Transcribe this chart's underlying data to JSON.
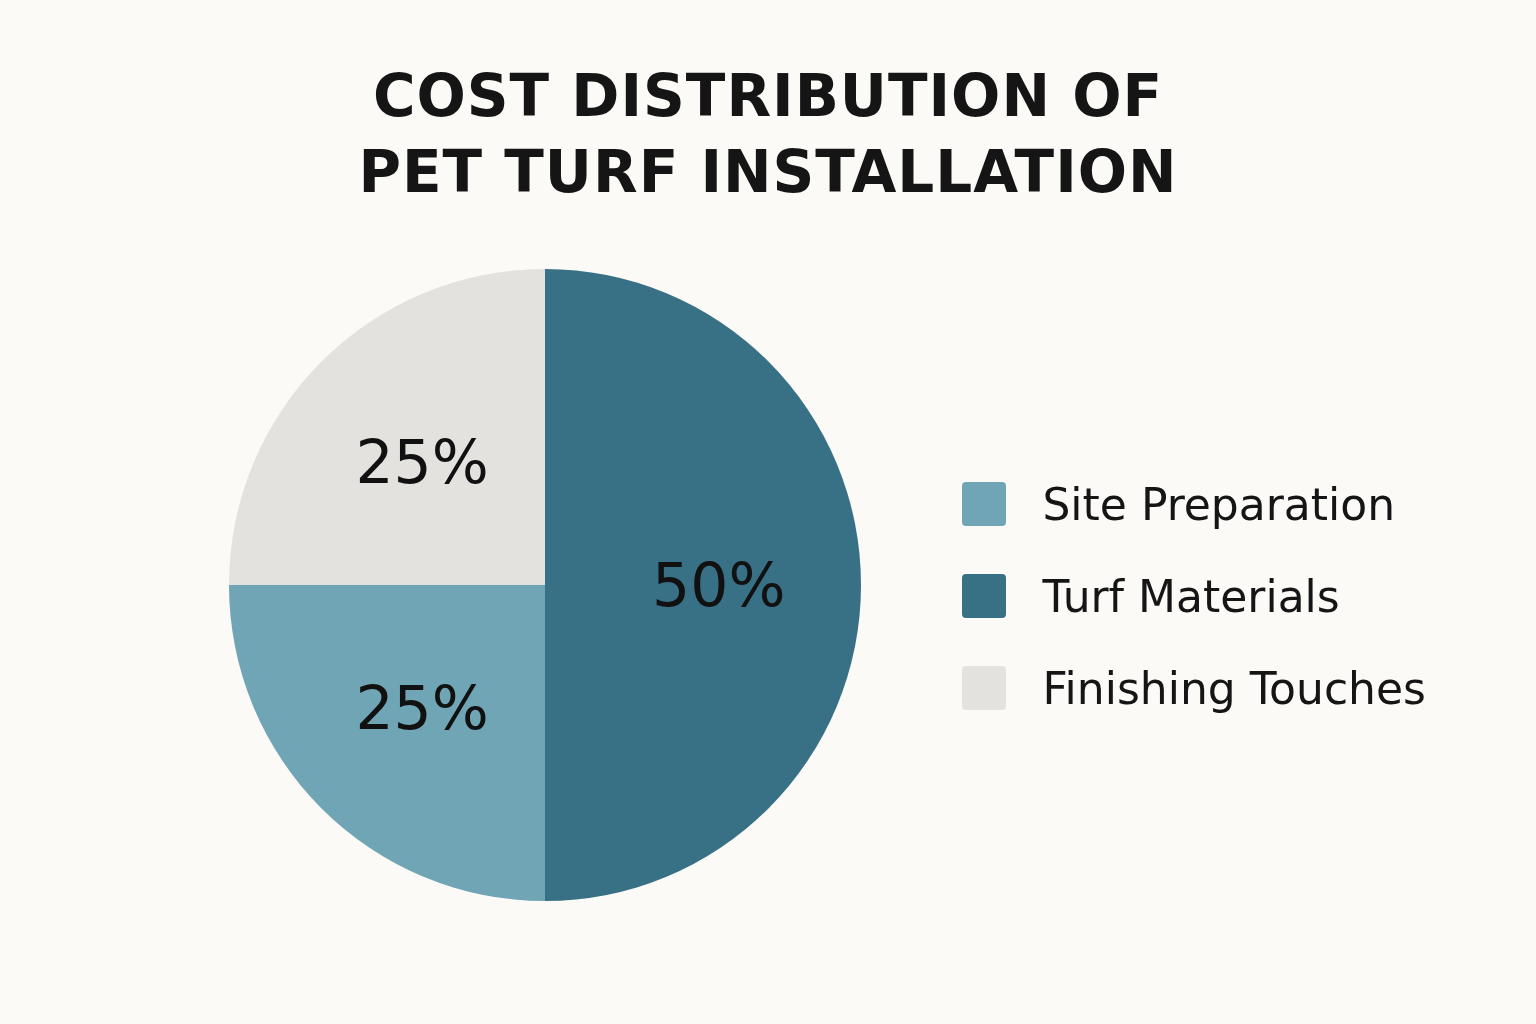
{
  "chart_data": {
    "type": "pie",
    "title": "COST DISTRIBUTION OF\nPET TURF INSTALLATION",
    "categories": [
      "Site Preparation",
      "Turf Materials",
      "Finishing Touches"
    ],
    "values": [
      25,
      50,
      25
    ],
    "colors": [
      "#6fa5b4",
      "#387186",
      "#e3e2de"
    ],
    "value_labels": [
      "25%",
      "50%",
      "25%"
    ],
    "legend": "right"
  }
}
